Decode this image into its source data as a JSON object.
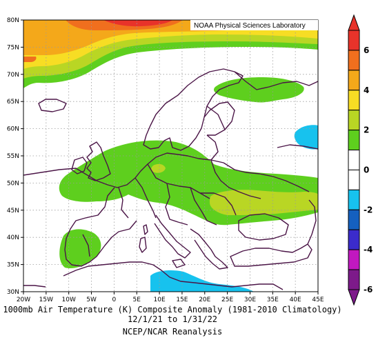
{
  "credit": "NOAA Physical Sciences Laboratory",
  "caption": {
    "line1": "1000mb Air Temperature (K) Composite Anomaly (1981-2010 Climatology)",
    "line2": "12/1/21 to 1/31/22",
    "line3": "NCEP/NCAR Reanalysis"
  },
  "axes": {
    "lon_ticks": [
      "20W",
      "15W",
      "10W",
      "5W",
      "0",
      "5E",
      "10E",
      "15E",
      "20E",
      "25E",
      "30E",
      "35E",
      "40E",
      "45E"
    ],
    "lat_ticks": [
      "80N",
      "75N",
      "70N",
      "65N",
      "60N",
      "55N",
      "50N",
      "45N",
      "40N",
      "35N",
      "30N"
    ]
  },
  "colorbar": {
    "labels": [
      "6",
      "4",
      "2",
      "0",
      "-2",
      "-4",
      "-6"
    ],
    "colors": [
      "#e8332a",
      "#f06f1e",
      "#f4a81a",
      "#f7dd24",
      "#b9d624",
      "#5ecf1e",
      "#ffffff",
      "#ffffff",
      "#17c2ee",
      "#1560bf",
      "#3b2bcb",
      "#c118c0",
      "#7d1a8a"
    ]
  },
  "colors": {
    "border": "#4a1446",
    "grid": "#9a9a9a",
    "warm1": "#5ecf1e",
    "warm2": "#b9d624",
    "warm3": "#f7dd24",
    "warm4": "#f4a81a",
    "warm5": "#f06f1e",
    "warm6": "#e8332a",
    "cool1": "#17c2ee"
  }
}
